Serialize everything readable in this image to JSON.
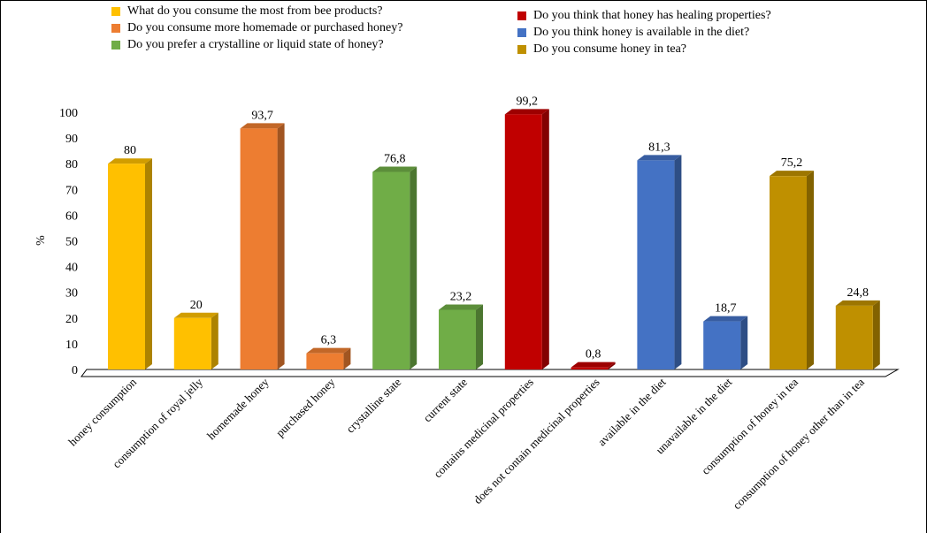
{
  "chart_data": {
    "type": "bar",
    "ylabel": "%",
    "ylim": [
      0,
      100
    ],
    "yticks": [
      0,
      10,
      20,
      30,
      40,
      50,
      60,
      70,
      80,
      90,
      100
    ],
    "grid": false,
    "legend_position": "top",
    "categories": [
      "honey consumption",
      "consumption of royal jelly",
      "homemade honey",
      "purchased honey",
      "crystalline state",
      "current state",
      "contains medicinal properties",
      "does not contain medicinal properties",
      "available in the diet",
      "unavailable in the diet",
      "consumption of honey in tea",
      "consumption of honey other than in tea"
    ],
    "values": [
      80,
      20,
      93.7,
      6.3,
      76.8,
      23.2,
      99.2,
      0.8,
      81.3,
      18.7,
      75.2,
      24.8
    ],
    "value_labels": [
      "80",
      "20",
      "93,7",
      "6,3",
      "76,8",
      "23,2",
      "99,2",
      "0,8",
      "81,3",
      "18,7",
      "75,2",
      "24,8"
    ],
    "bar_series": [
      0,
      0,
      1,
      1,
      2,
      2,
      3,
      3,
      4,
      4,
      5,
      5
    ],
    "series": [
      {
        "name": "What do you consume the most from bee products?",
        "color": "#FFC000"
      },
      {
        "name": "Do you consume more homemade or purchased honey?",
        "color": "#ED7D31"
      },
      {
        "name": "Do you prefer a crystalline or liquid state of honey?",
        "color": "#70AD47"
      },
      {
        "name": "Do you think that honey has healing properties?",
        "color": "#C00000"
      },
      {
        "name": "Do you think honey is available in the diet?",
        "color": "#4472C4"
      },
      {
        "name": "Do you consume honey in tea?",
        "color": "#BF9000"
      }
    ]
  }
}
